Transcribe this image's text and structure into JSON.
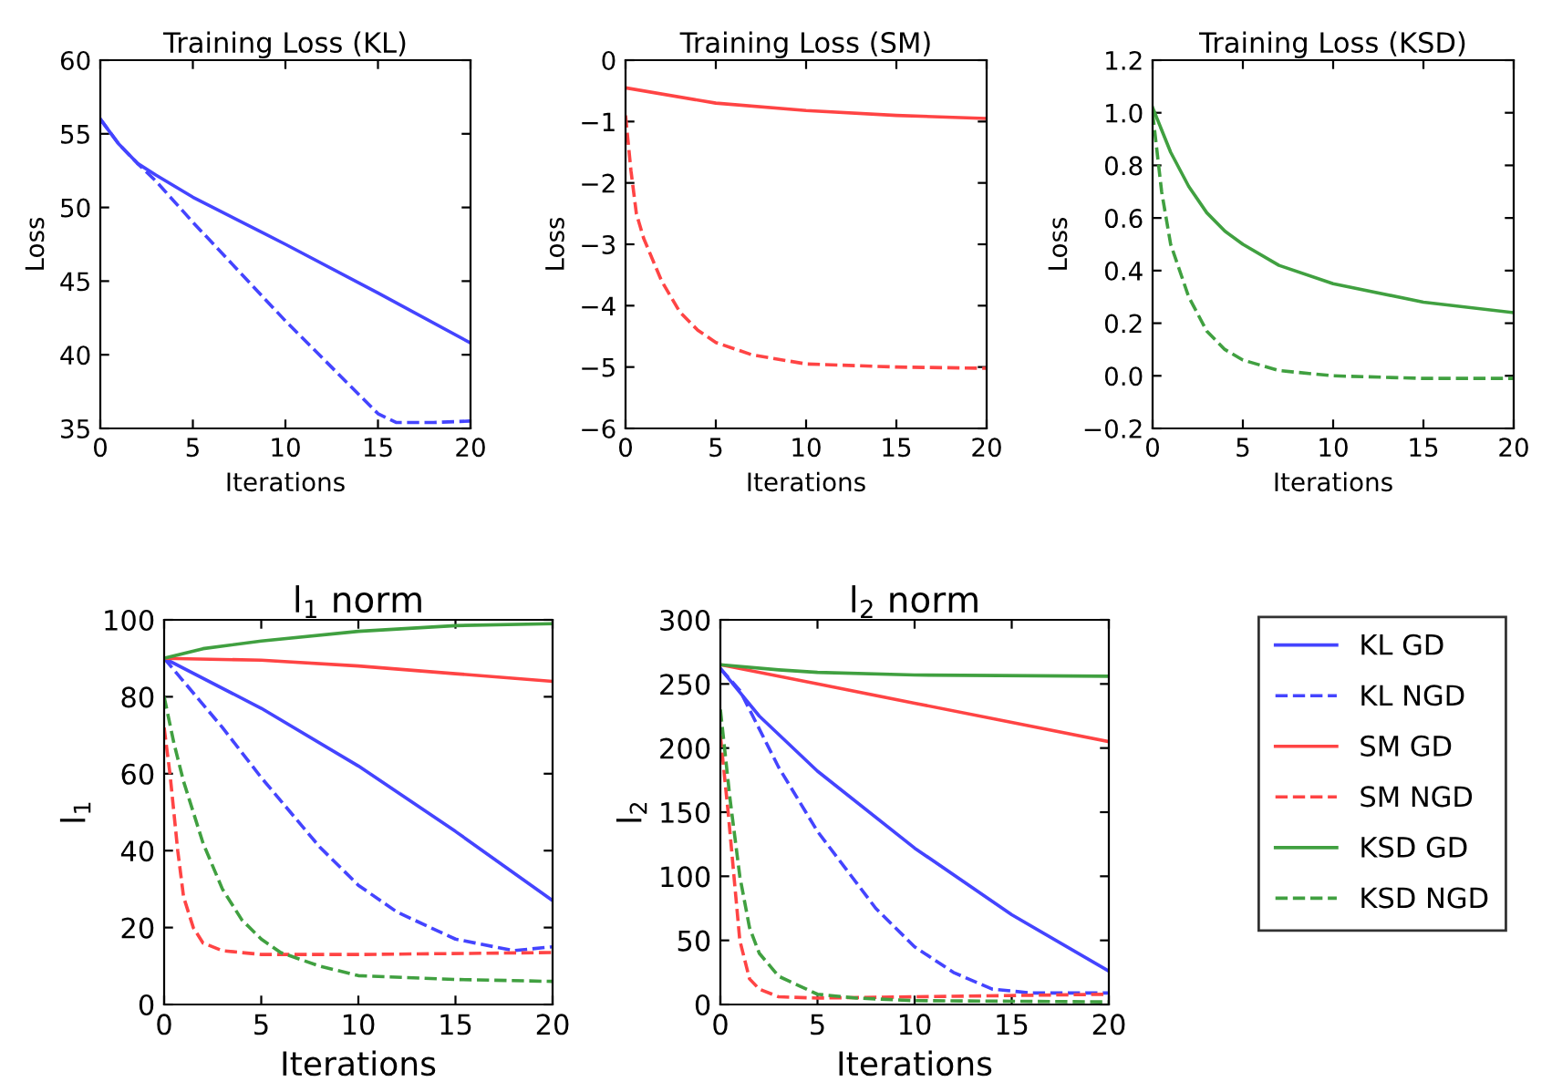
{
  "chart_data": [
    {
      "type": "line",
      "title": "Training Loss (KL)",
      "xlabel": "Iterations",
      "ylabel": "Loss",
      "xlim": [
        0,
        20
      ],
      "xticks": [
        0,
        5,
        10,
        15,
        20
      ],
      "ylim": [
        35,
        60
      ],
      "yticks": [
        35,
        40,
        45,
        50,
        55,
        60
      ],
      "grid": false,
      "legend": false,
      "series": [
        {
          "color": "#4444ff",
          "line_style": "solid",
          "x": [
            0,
            1,
            2,
            3,
            5,
            10,
            15,
            20
          ],
          "values": [
            56,
            54.3,
            53,
            52.2,
            50.7,
            47.5,
            44.2,
            40.8
          ]
        },
        {
          "color": "#4444ff",
          "line_style": "dashed",
          "x": [
            0,
            1,
            2,
            3,
            5,
            10,
            15,
            16,
            18,
            20
          ],
          "values": [
            56,
            54.3,
            53,
            51.8,
            49,
            42.3,
            36,
            35.4,
            35.4,
            35.5
          ]
        }
      ]
    },
    {
      "type": "line",
      "title": "Training Loss (SM)",
      "xlabel": "Iterations",
      "ylabel": "Loss",
      "xlim": [
        0,
        20
      ],
      "xticks": [
        0,
        5,
        10,
        15,
        20
      ],
      "ylim": [
        -6,
        0
      ],
      "yticks": [
        {
          "value": -6,
          "label": "−6"
        },
        {
          "value": -5,
          "label": "−5"
        },
        {
          "value": -4,
          "label": "−4"
        },
        {
          "value": -3,
          "label": "−3"
        },
        {
          "value": -2,
          "label": "−2"
        },
        {
          "value": -1,
          "label": "−1"
        },
        0
      ],
      "grid": false,
      "legend": false,
      "series": [
        {
          "color": "#ff4444",
          "line_style": "solid",
          "x": [
            0,
            5,
            10,
            15,
            20
          ],
          "values": [
            -0.45,
            -0.7,
            -0.82,
            -0.9,
            -0.95
          ]
        },
        {
          "color": "#ff4444",
          "line_style": "dashed",
          "x": [
            0,
            0.3,
            0.6,
            1,
            2,
            3,
            4,
            5,
            7,
            10,
            15,
            20
          ],
          "values": [
            -0.9,
            -1.8,
            -2.5,
            -2.9,
            -3.6,
            -4.1,
            -4.4,
            -4.6,
            -4.8,
            -4.95,
            -5.0,
            -5.02
          ]
        }
      ]
    },
    {
      "type": "line",
      "title": "Training Loss (KSD)",
      "xlabel": "Iterations",
      "ylabel": "Loss",
      "xlim": [
        0,
        20
      ],
      "xticks": [
        0,
        5,
        10,
        15,
        20
      ],
      "ylim": [
        -0.2,
        1.2
      ],
      "yticks": [
        {
          "value": -0.2,
          "label": "−0.2"
        },
        {
          "value": 0,
          "label": "0.0"
        },
        0.2,
        0.4,
        0.6,
        0.8,
        {
          "value": 1,
          "label": "1.0"
        },
        1.2
      ],
      "grid": false,
      "legend": false,
      "series": [
        {
          "color": "#40a040",
          "line_style": "solid",
          "x": [
            0,
            1,
            2,
            3,
            4,
            5,
            7,
            10,
            15,
            20
          ],
          "values": [
            1.02,
            0.85,
            0.72,
            0.62,
            0.55,
            0.5,
            0.42,
            0.35,
            0.28,
            0.24
          ]
        },
        {
          "color": "#40a040",
          "line_style": "dashed",
          "x": [
            0,
            0.5,
            1,
            2,
            3,
            4,
            5,
            7,
            10,
            15,
            20
          ],
          "values": [
            1.0,
            0.7,
            0.5,
            0.3,
            0.17,
            0.1,
            0.06,
            0.02,
            0.0,
            -0.01,
            -0.01
          ]
        }
      ]
    },
    {
      "type": "line",
      "title": "l$_{1}$ norm",
      "xlabel": "Iterations",
      "ylabel": "l$_{1}$",
      "xlim": [
        0,
        20
      ],
      "xticks": [
        0,
        5,
        10,
        15,
        20
      ],
      "ylim": [
        0,
        100
      ],
      "yticks": [
        0,
        20,
        40,
        60,
        80,
        100
      ],
      "grid": false,
      "legend": false,
      "series": [
        {
          "color": "#4444ff",
          "line_style": "solid",
          "x": [
            0,
            5,
            10,
            15,
            20
          ],
          "values": [
            90,
            77,
            62,
            45,
            27
          ]
        },
        {
          "color": "#4444ff",
          "line_style": "dashed",
          "x": [
            0,
            1,
            3,
            5,
            8,
            10,
            12,
            15,
            18,
            20
          ],
          "values": [
            90,
            84,
            72,
            59,
            41,
            31,
            24,
            17,
            14,
            15
          ]
        },
        {
          "color": "#ff4444",
          "line_style": "solid",
          "x": [
            0,
            5,
            10,
            15,
            20
          ],
          "values": [
            90,
            89.5,
            88,
            86,
            84
          ]
        },
        {
          "color": "#ff4444",
          "line_style": "dashed",
          "x": [
            0,
            0.3,
            0.7,
            1,
            1.5,
            2,
            3,
            5,
            10,
            20
          ],
          "values": [
            72,
            60,
            40,
            28,
            20,
            16,
            14,
            13,
            13,
            13.5
          ]
        },
        {
          "color": "#40a040",
          "line_style": "solid",
          "x": [
            0,
            2,
            5,
            10,
            15,
            20
          ],
          "values": [
            90,
            92.5,
            94.5,
            97,
            98.5,
            99
          ]
        },
        {
          "color": "#40a040",
          "line_style": "dashed",
          "x": [
            0,
            0.5,
            1,
            2,
            3,
            4,
            5,
            6,
            8,
            10,
            15,
            20
          ],
          "values": [
            80,
            68,
            58,
            42,
            30,
            22,
            17,
            13.5,
            10,
            7.5,
            6.5,
            6
          ]
        }
      ]
    },
    {
      "type": "line",
      "title": "l$_{2}$ norm",
      "xlabel": "Iterations",
      "ylabel": "l$_{2}$",
      "xlim": [
        0,
        20
      ],
      "xticks": [
        0,
        5,
        10,
        15,
        20
      ],
      "ylim": [
        0,
        300
      ],
      "yticks": [
        0,
        50,
        100,
        150,
        200,
        250,
        300
      ],
      "grid": false,
      "legend": "right",
      "series": [
        {
          "name": "KL GD",
          "color": "#4444ff",
          "line_style": "solid",
          "x": [
            0,
            2,
            5,
            10,
            15,
            20
          ],
          "values": [
            262,
            225,
            182,
            122,
            70,
            26
          ]
        },
        {
          "name": "KL NGD",
          "color": "#4444ff",
          "line_style": "dashed",
          "x": [
            0,
            1,
            3,
            5,
            8,
            10,
            12,
            14,
            16,
            20
          ],
          "values": [
            262,
            245,
            185,
            135,
            75,
            45,
            25,
            12,
            9,
            9
          ]
        },
        {
          "name": "SM GD",
          "color": "#ff4444",
          "line_style": "solid",
          "x": [
            0,
            5,
            10,
            15,
            20
          ],
          "values": [
            265,
            250,
            235,
            220,
            205
          ]
        },
        {
          "name": "SM NGD",
          "color": "#ff4444",
          "line_style": "dashed",
          "x": [
            0,
            0.4,
            0.7,
            1,
            1.5,
            2,
            3,
            5,
            10,
            20
          ],
          "values": [
            210,
            150,
            100,
            50,
            20,
            12,
            6,
            5,
            6,
            8
          ]
        },
        {
          "name": "KSD GD",
          "color": "#40a040",
          "line_style": "solid",
          "x": [
            0,
            3,
            5,
            10,
            20
          ],
          "values": [
            265,
            261,
            259,
            257,
            256
          ]
        },
        {
          "name": "KSD NGD",
          "color": "#40a040",
          "line_style": "dashed",
          "x": [
            0,
            0.5,
            1,
            1.5,
            2,
            3,
            5,
            7,
            10,
            20
          ],
          "values": [
            230,
            160,
            100,
            60,
            40,
            22,
            8,
            5,
            3,
            2
          ]
        }
      ]
    }
  ]
}
